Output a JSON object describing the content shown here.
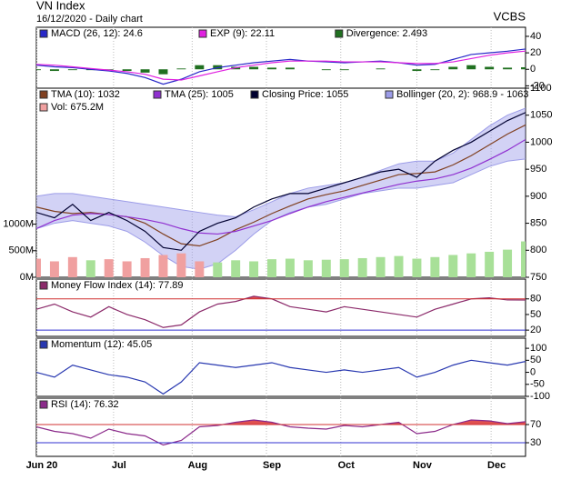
{
  "header": {
    "title": "VN Index",
    "subtitle": "16/12/2020 - Daily chart",
    "brand": "VCBS"
  },
  "chart_data": [
    {
      "type": "line",
      "ylim": [
        -24,
        51
      ],
      "yticks": [
        40,
        20,
        0,
        -20
      ],
      "series": [
        {
          "name": "MACD (26, 12): 24.6",
          "color": "#2828c8",
          "values": [
            5,
            3,
            2,
            0,
            -2,
            -5,
            -10,
            -18,
            -12,
            -3,
            2,
            5,
            8,
            10,
            12,
            10,
            9,
            8,
            9,
            10,
            8,
            5,
            6,
            12,
            18,
            20,
            22,
            24.6
          ]
        },
        {
          "name": "EXP (9): 22.11",
          "color": "#e020e0",
          "values": [
            6,
            5,
            3,
            1,
            -1,
            -3,
            -6,
            -12,
            -13,
            -8,
            -3,
            2,
            5,
            8,
            10,
            10,
            10,
            9,
            9,
            9,
            8,
            7,
            7,
            9,
            13,
            17,
            20,
            22.11
          ]
        },
        {
          "name": "Divergence: 2.493",
          "color": "#207020",
          "type": "bar",
          "values": [
            -1,
            -2,
            -1,
            -1,
            -1,
            -2,
            -4,
            -6,
            1,
            5,
            5,
            3,
            3,
            2,
            2,
            0,
            -1,
            -1,
            0,
            1,
            0,
            -2,
            -1,
            3,
            5,
            3,
            2,
            2.493
          ]
        }
      ]
    },
    {
      "type": "line",
      "ylim": [
        750,
        1100
      ],
      "yticks": [
        750,
        800,
        850,
        900,
        950,
        1000,
        1050,
        1100
      ],
      "y2lim": [
        0,
        3560
      ],
      "y2ticks": [
        {
          "value": 0,
          "label": "0M"
        },
        {
          "value": 500,
          "label": "500M"
        },
        {
          "value": 1000,
          "label": "1000M"
        }
      ],
      "series": [
        {
          "name": "TMA (10): 1032",
          "color": "#804020",
          "values": [
            880,
            872,
            868,
            870,
            866,
            862,
            850,
            830,
            812,
            808,
            820,
            838,
            852,
            868,
            882,
            895,
            903,
            910,
            920,
            930,
            940,
            942,
            945,
            958,
            975,
            995,
            1015,
            1032
          ]
        },
        {
          "name": "TMA (25): 1005",
          "color": "#9030d0",
          "values": [
            840,
            855,
            865,
            868,
            866,
            862,
            857,
            850,
            840,
            832,
            830,
            835,
            845,
            855,
            868,
            880,
            890,
            898,
            906,
            914,
            922,
            928,
            932,
            940,
            952,
            968,
            985,
            1005
          ]
        },
        {
          "name": "Closing Price: 1055",
          "color": "#000030",
          "values": [
            870,
            860,
            885,
            855,
            870,
            855,
            835,
            805,
            800,
            835,
            850,
            860,
            880,
            895,
            905,
            905,
            915,
            925,
            935,
            945,
            950,
            935,
            965,
            985,
            1000,
            1020,
            1040,
            1055
          ]
        },
        {
          "name": "Bollinger (20, 2): 968.9 - 1063",
          "color": "#9c9ce8",
          "type": "band",
          "upper": [
            900,
            905,
            905,
            900,
            895,
            890,
            885,
            880,
            875,
            870,
            865,
            862,
            875,
            890,
            905,
            915,
            920,
            925,
            935,
            948,
            960,
            965,
            965,
            980,
            1005,
            1030,
            1050,
            1063
          ],
          "lower": [
            840,
            850,
            855,
            850,
            845,
            835,
            815,
            790,
            770,
            765,
            775,
            800,
            830,
            855,
            870,
            880,
            885,
            895,
            905,
            910,
            915,
            915,
            920,
            925,
            940,
            955,
            965,
            968.9
          ]
        },
        {
          "name": "Vol: 675.2M",
          "color": "#f0a0a0",
          "type": "bar",
          "axis": "y2",
          "up_color": "#a8e098",
          "values": [
            350,
            300,
            380,
            320,
            340,
            300,
            360,
            420,
            450,
            300,
            280,
            320,
            300,
            340,
            350,
            320,
            330,
            340,
            360,
            380,
            400,
            350,
            380,
            420,
            450,
            480,
            520,
            675.2
          ]
        }
      ]
    },
    {
      "type": "line",
      "ylim": [
        8,
        118
      ],
      "yticks": [
        80,
        50,
        20
      ],
      "levels": [
        {
          "value": 80,
          "color": "#d03030"
        },
        {
          "value": 20,
          "color": "#3030d0"
        }
      ],
      "series": [
        {
          "name": "Money Flow Index (14): 77.89",
          "color": "#8b2a6a",
          "values": [
            60,
            70,
            55,
            45,
            65,
            50,
            40,
            25,
            30,
            55,
            70,
            75,
            85,
            80,
            65,
            60,
            55,
            65,
            60,
            55,
            50,
            45,
            60,
            70,
            80,
            82,
            78,
            77.89
          ]
        }
      ]
    },
    {
      "type": "line",
      "ylim": [
        -100,
        142
      ],
      "yticks": [
        100,
        50,
        0,
        -50,
        -100
      ],
      "series": [
        {
          "name": "Momentum (12): 45.05",
          "color": "#2838b0",
          "values": [
            0,
            -20,
            30,
            10,
            -10,
            -20,
            -40,
            -90,
            -40,
            40,
            30,
            20,
            30,
            40,
            20,
            10,
            0,
            10,
            0,
            10,
            20,
            -20,
            0,
            30,
            50,
            40,
            30,
            45.05
          ]
        }
      ]
    },
    {
      "type": "line",
      "ylim": [
        0,
        128
      ],
      "yticks": [
        70,
        30
      ],
      "levels": [
        {
          "value": 70,
          "color": "#d03030"
        },
        {
          "value": 30,
          "color": "#3030d0"
        }
      ],
      "x": [
        0,
        5,
        10,
        15,
        20,
        25,
        30,
        35,
        40,
        45,
        50,
        55,
        60,
        65,
        70,
        75,
        80,
        85,
        90,
        95,
        100,
        105,
        110,
        115,
        120,
        125,
        130,
        135
      ],
      "xlim": [
        0,
        135
      ],
      "xticks": [
        {
          "value": 0,
          "label": "Jun 20"
        },
        {
          "value": 21.3,
          "label": "Jul"
        },
        {
          "value": 43,
          "label": "Aug"
        },
        {
          "value": 63.5,
          "label": "Sep"
        },
        {
          "value": 84,
          "label": "Oct"
        },
        {
          "value": 105,
          "label": "Nov"
        },
        {
          "value": 125.5,
          "label": "Dec"
        }
      ],
      "series": [
        {
          "name": "RSI (14): 76.32",
          "color": "#8b2a8a",
          "values": [
            65,
            55,
            50,
            40,
            60,
            50,
            45,
            25,
            35,
            65,
            68,
            75,
            80,
            75,
            65,
            62,
            60,
            68,
            65,
            70,
            75,
            50,
            55,
            70,
            80,
            78,
            72,
            76.32
          ]
        }
      ]
    }
  ]
}
